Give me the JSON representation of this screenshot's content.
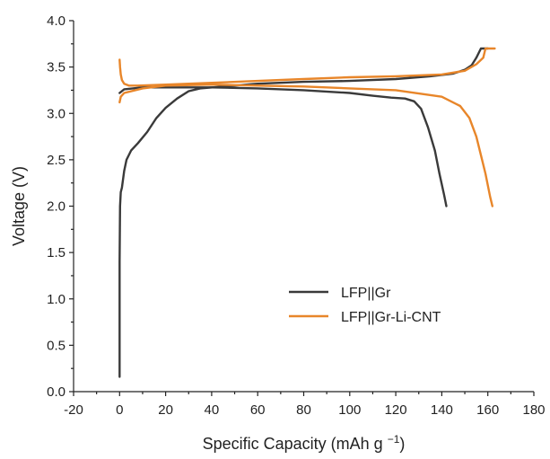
{
  "chart_data": {
    "type": "line",
    "title": "",
    "xlabel": "Specific Capacity (mAh g",
    "xlabel_superscript": "−1",
    "xlabel_suffix": ")",
    "ylabel": "Voltage (V)",
    "xlim": [
      -20,
      180
    ],
    "ylim": [
      0.0,
      4.0
    ],
    "xticks": [
      -20,
      0,
      20,
      40,
      60,
      80,
      100,
      120,
      140,
      160,
      180
    ],
    "yticks": [
      "0.0",
      "0.5",
      "1.0",
      "1.5",
      "2.0",
      "2.5",
      "3.0",
      "3.5",
      "4.0"
    ],
    "grid": false,
    "legend_position": "lower-right",
    "series": [
      {
        "name": "LFP||Gr",
        "color": "#3a3a3a",
        "segments": [
          {
            "label": "charge",
            "points": [
              [
                0,
                0.16
              ],
              [
                0,
                1.4
              ],
              [
                0.2,
                2.0
              ],
              [
                0.5,
                2.15
              ],
              [
                1,
                2.2
              ],
              [
                2,
                2.38
              ],
              [
                3,
                2.5
              ],
              [
                5,
                2.6
              ],
              [
                8,
                2.68
              ],
              [
                12,
                2.8
              ],
              [
                16,
                2.95
              ],
              [
                20,
                3.06
              ],
              [
                25,
                3.16
              ],
              [
                30,
                3.24
              ],
              [
                35,
                3.27
              ],
              [
                45,
                3.29
              ],
              [
                60,
                3.32
              ],
              [
                80,
                3.34
              ],
              [
                100,
                3.35
              ],
              [
                120,
                3.37
              ],
              [
                135,
                3.4
              ],
              [
                145,
                3.43
              ],
              [
                150,
                3.47
              ],
              [
                153,
                3.52
              ],
              [
                155,
                3.6
              ],
              [
                157,
                3.7
              ],
              [
                160,
                3.7
              ]
            ]
          },
          {
            "label": "discharge",
            "points": [
              [
                0,
                3.22
              ],
              [
                2,
                3.26
              ],
              [
                10,
                3.28
              ],
              [
                20,
                3.28
              ],
              [
                40,
                3.28
              ],
              [
                60,
                3.27
              ],
              [
                80,
                3.25
              ],
              [
                100,
                3.22
              ],
              [
                110,
                3.19
              ],
              [
                118,
                3.17
              ],
              [
                124,
                3.16
              ],
              [
                128,
                3.13
              ],
              [
                131,
                3.05
              ],
              [
                134,
                2.85
              ],
              [
                137,
                2.6
              ],
              [
                139,
                2.35
              ],
              [
                141,
                2.12
              ],
              [
                142,
                2.0
              ]
            ]
          }
        ]
      },
      {
        "name": "LFP||Gr-Li-CNT",
        "color": "#e8862a",
        "segments": [
          {
            "label": "charge",
            "points": [
              [
                0,
                3.58
              ],
              [
                0.2,
                3.5
              ],
              [
                0.5,
                3.42
              ],
              [
                1,
                3.36
              ],
              [
                2,
                3.32
              ],
              [
                4,
                3.3
              ],
              [
                8,
                3.3
              ],
              [
                20,
                3.31
              ],
              [
                40,
                3.33
              ],
              [
                60,
                3.35
              ],
              [
                80,
                3.37
              ],
              [
                100,
                3.39
              ],
              [
                120,
                3.4
              ],
              [
                140,
                3.42
              ],
              [
                150,
                3.46
              ],
              [
                155,
                3.53
              ],
              [
                158,
                3.6
              ],
              [
                159,
                3.7
              ],
              [
                163,
                3.7
              ]
            ]
          },
          {
            "label": "discharge",
            "points": [
              [
                0,
                3.12
              ],
              [
                0.5,
                3.18
              ],
              [
                2,
                3.22
              ],
              [
                10,
                3.27
              ],
              [
                20,
                3.3
              ],
              [
                40,
                3.31
              ],
              [
                60,
                3.3
              ],
              [
                80,
                3.29
              ],
              [
                100,
                3.27
              ],
              [
                120,
                3.25
              ],
              [
                140,
                3.18
              ],
              [
                148,
                3.08
              ],
              [
                152,
                2.95
              ],
              [
                155,
                2.75
              ],
              [
                157,
                2.55
              ],
              [
                159,
                2.35
              ],
              [
                161,
                2.1
              ],
              [
                162,
                2.0
              ]
            ]
          }
        ]
      }
    ]
  }
}
